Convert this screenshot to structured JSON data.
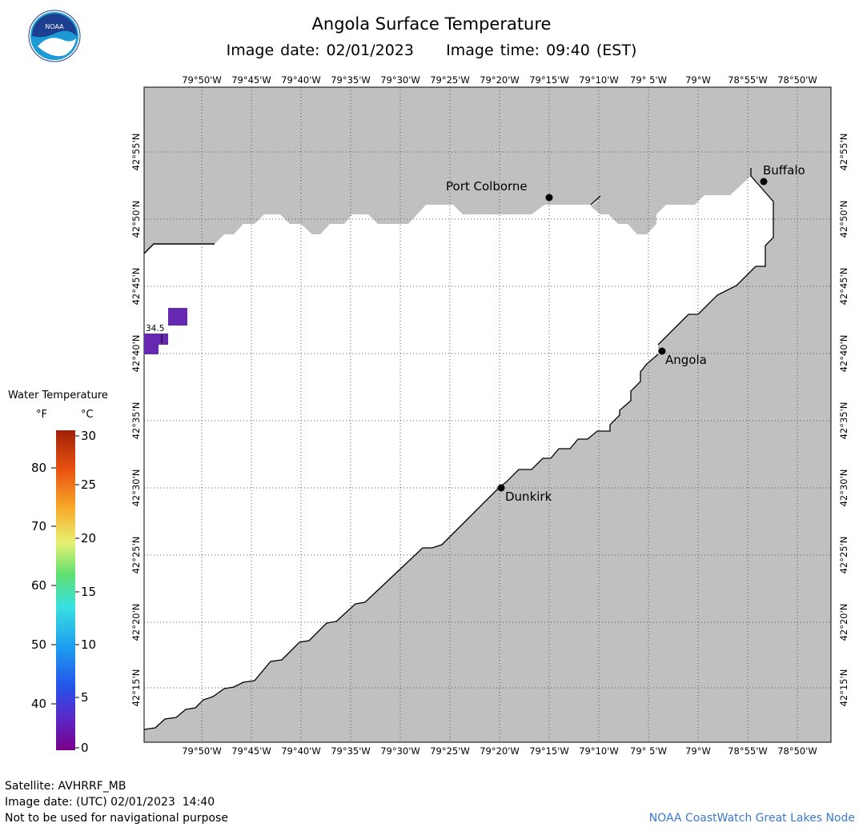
{
  "header": {
    "title": "Angola Surface Temperature",
    "image_date_label": "Image date: 02/01/2023",
    "image_time_label": "Image time: 09:40 (EST)"
  },
  "axes": {
    "lon_labels": [
      "79°50'W",
      "79°45'W",
      "79°40'W",
      "79°35'W",
      "79°30'W",
      "79°25'W",
      "79°20'W",
      "79°15'W",
      "79°10'W",
      "79° 5'W",
      "79°W",
      "78°55'W",
      "78°50'W"
    ],
    "lat_labels": [
      "42°55'N",
      "42°50'N",
      "42°45'N",
      "42°40'N",
      "42°35'N",
      "42°30'N",
      "42°25'N",
      "42°20'N",
      "42°15'N"
    ]
  },
  "places": [
    {
      "name": "Port Colborne"
    },
    {
      "name": "Buffalo"
    },
    {
      "name": "Angola"
    },
    {
      "name": "Dunkirk"
    }
  ],
  "data_label": "34.5",
  "legend": {
    "title": "Water Temperature",
    "unit_f": "°F",
    "unit_c": "°C",
    "f_ticks": [
      "80",
      "70",
      "60",
      "50",
      "40"
    ],
    "c_ticks": [
      "30",
      "25",
      "20",
      "15",
      "10",
      "5",
      "0"
    ]
  },
  "footer": {
    "satellite": "Satellite: AVHRRF_MB",
    "utc_date": "Image date: (UTC) 02/01/2023  14:40",
    "disclaimer": "Not to be used for navigational purpose",
    "credit": "NOAA CoastWatch Great Lakes Node"
  },
  "colors": {
    "land": "#c0c0c0",
    "water": "#ffffff",
    "pixel": "#6628b0",
    "credit": "#3a7ad0"
  }
}
